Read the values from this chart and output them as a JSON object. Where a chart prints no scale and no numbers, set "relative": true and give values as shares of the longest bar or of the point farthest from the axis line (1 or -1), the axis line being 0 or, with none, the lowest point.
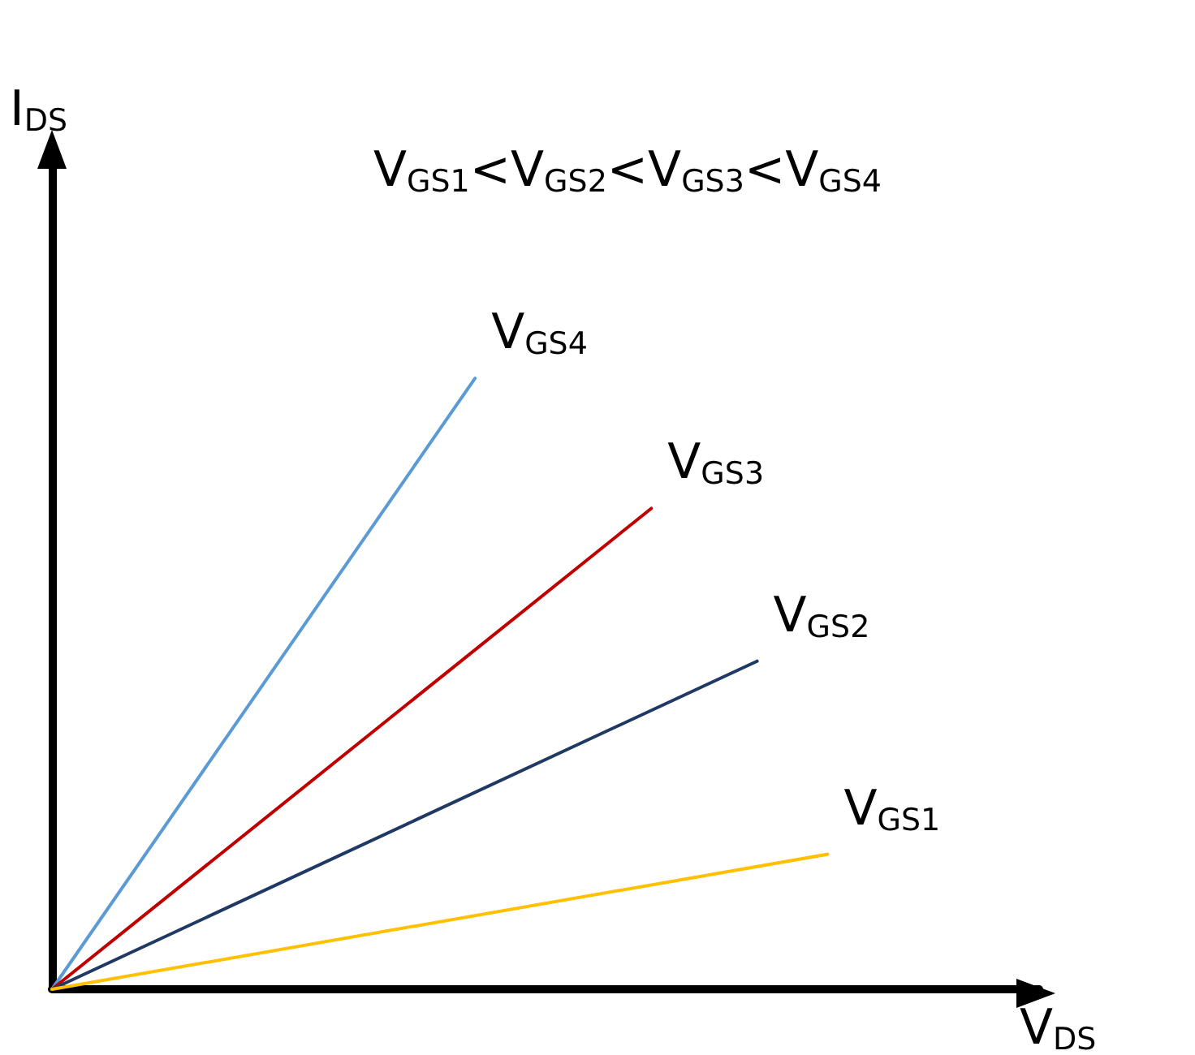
{
  "chart_data": {
    "type": "line",
    "relative": true,
    "xlabel": "V$_{DS}$",
    "ylabel": "I$_{DS}$",
    "annotations": [
      "V$_{GS1}$<V$_{GS2}$<V$_{GS3}$<V$_{GS4}$"
    ],
    "categories": [
      null,
      null,
      null,
      null,
      null,
      null,
      null,
      null,
      null,
      null,
      null,
      null,
      null,
      null,
      null,
      null,
      null,
      null,
      null,
      null,
      null,
      null,
      null,
      null,
      null,
      null,
      null,
      null,
      null
    ],
    "series": [
      {
        "name": "V$_{GS4}$",
        "color": "#5b9bd5",
        "values": [
          0,
          null,
          null,
          null,
          null,
          null,
          null,
          null,
          null,
          null,
          null,
          null,
          1,
          null,
          null,
          null,
          null,
          null,
          null,
          null,
          null,
          null,
          null,
          null,
          null,
          null,
          null,
          null,
          null
        ]
      },
      {
        "name": "V$_{GS3}$",
        "color": "#c00000",
        "values": [
          0,
          null,
          null,
          null,
          null,
          null,
          null,
          null,
          null,
          null,
          null,
          null,
          null,
          null,
          null,
          null,
          null,
          0.787,
          null,
          null,
          null,
          null,
          null,
          null,
          null,
          null,
          null,
          null,
          null
        ]
      },
      {
        "name": "V$_{GS2}$",
        "color": "#1f3864",
        "values": [
          0,
          null,
          null,
          null,
          null,
          null,
          null,
          null,
          null,
          null,
          null,
          null,
          null,
          null,
          null,
          null,
          null,
          null,
          null,
          null,
          0.537,
          null,
          null,
          null,
          null,
          null,
          null,
          null,
          null
        ]
      },
      {
        "name": "V$_{GS1}$",
        "color": "#ffc000",
        "values": [
          0,
          null,
          null,
          null,
          null,
          null,
          null,
          null,
          null,
          null,
          null,
          null,
          null,
          null,
          null,
          null,
          null,
          null,
          null,
          null,
          null,
          null,
          0.221,
          null,
          null,
          null,
          null,
          null,
          null
        ]
      }
    ],
    "tick_labels": false,
    "grid": false,
    "legend": false,
    "marker": "none",
    "line_style": "solid"
  }
}
